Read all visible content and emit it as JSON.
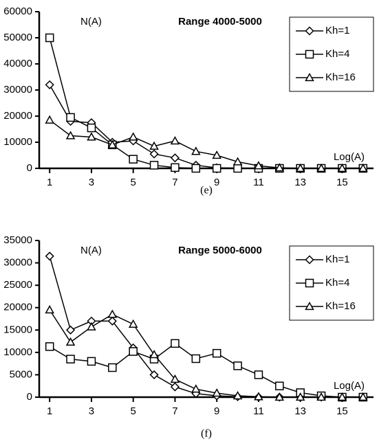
{
  "chart_data": [
    {
      "type": "line",
      "title": "Range 4000-5000",
      "ylabel": "N(A)",
      "xlabel": "Log(A)",
      "caption": "(e)",
      "x": [
        1,
        2,
        3,
        4,
        5,
        6,
        7,
        8,
        9,
        10,
        11,
        12,
        13,
        14,
        15,
        16
      ],
      "xlim": [
        0.5,
        16.5
      ],
      "xticks": [
        1,
        3,
        5,
        7,
        9,
        11,
        13,
        15
      ],
      "ylim": [
        0,
        60000
      ],
      "yticks": [
        0,
        10000,
        20000,
        30000,
        40000,
        50000,
        60000
      ],
      "series": [
        {
          "name": "Kh=1",
          "color": "#000000",
          "marker": "diamond",
          "values": [
            32000,
            18000,
            17500,
            10000,
            10500,
            5500,
            4000,
            1200,
            200,
            100,
            0,
            0,
            0,
            0,
            0,
            0
          ]
        },
        {
          "name": "Kh=4",
          "color": "#000000",
          "marker": "square",
          "values": [
            50000,
            19500,
            15500,
            9000,
            3500,
            1200,
            300,
            0,
            0,
            0,
            0,
            0,
            0,
            0,
            0,
            0
          ]
        },
        {
          "name": "Kh=16",
          "color": "#000000",
          "marker": "triangle",
          "values": [
            18500,
            12500,
            12000,
            9000,
            12000,
            8500,
            10500,
            6500,
            5000,
            2500,
            1000,
            200,
            0,
            0,
            0,
            0
          ]
        }
      ]
    },
    {
      "type": "line",
      "title": "Range 5000-6000",
      "ylabel": "N(A)",
      "xlabel": "Log(A)",
      "caption": "(f)",
      "x": [
        1,
        2,
        3,
        4,
        5,
        6,
        7,
        8,
        9,
        10,
        11,
        12,
        13,
        14,
        15,
        16
      ],
      "xlim": [
        0.5,
        16.5
      ],
      "xticks": [
        1,
        3,
        5,
        7,
        9,
        11,
        13,
        15
      ],
      "ylim": [
        0,
        35000
      ],
      "yticks": [
        0,
        5000,
        10000,
        15000,
        20000,
        25000,
        30000,
        35000
      ],
      "series": [
        {
          "name": "Kh=1",
          "color": "#000000",
          "marker": "diamond",
          "values": [
            31500,
            15000,
            17000,
            17000,
            11000,
            5000,
            2300,
            800,
            300,
            100,
            0,
            0,
            0,
            0,
            0,
            0
          ]
        },
        {
          "name": "Kh=4",
          "color": "#000000",
          "marker": "square",
          "values": [
            11300,
            8500,
            8000,
            6600,
            10200,
            8500,
            12000,
            8600,
            9800,
            7000,
            5000,
            2500,
            1000,
            300,
            0,
            0
          ]
        },
        {
          "name": "Kh=16",
          "color": "#000000",
          "marker": "triangle",
          "values": [
            19500,
            12300,
            15700,
            18500,
            16300,
            9500,
            4000,
            1800,
            900,
            300,
            100,
            0,
            0,
            0,
            0,
            0
          ]
        }
      ]
    }
  ]
}
